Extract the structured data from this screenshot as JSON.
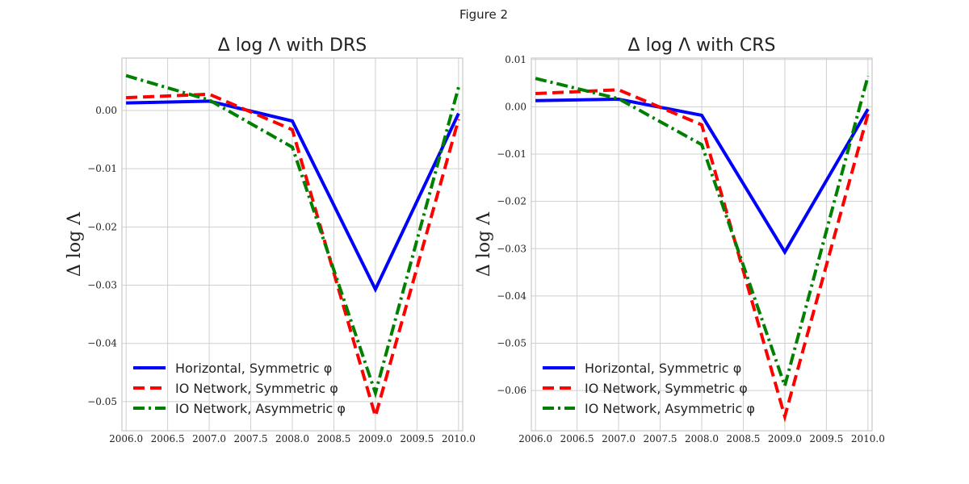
{
  "figure": {
    "title": "Figure 2"
  },
  "chart_data": [
    {
      "type": "line",
      "title": "Δ log Λ with DRS",
      "ylabel": "Δ log Λ",
      "xlabel": "",
      "xlim": [
        2005.95,
        2010.05
      ],
      "ylim": [
        -0.055,
        0.009
      ],
      "xticks": [
        "2006.0",
        "2006.5",
        "2007.0",
        "2007.5",
        "2008.0",
        "2008.5",
        "2009.0",
        "2009.5",
        "2010.0"
      ],
      "xtick_values": [
        2006.0,
        2006.5,
        2007.0,
        2007.5,
        2008.0,
        2008.5,
        2009.0,
        2009.5,
        2010.0
      ],
      "yticks": [
        "0.00",
        "−0.01",
        "−0.02",
        "−0.03",
        "−0.04",
        "−0.05"
      ],
      "ytick_values": [
        0.0,
        -0.01,
        -0.02,
        -0.03,
        -0.04,
        -0.05
      ],
      "grid": true,
      "legend_position": "lower-left",
      "x": [
        2006,
        2007,
        2008,
        2009,
        2010
      ],
      "series": [
        {
          "name": "Horizontal, Symmetric φ",
          "color": "#0000ff",
          "dash": "solid",
          "values": [
            0.0013,
            0.0016,
            -0.0018,
            -0.0307,
            -0.0005
          ]
        },
        {
          "name": "IO Network, Symmetric φ",
          "color": "#ff0000",
          "dash": "dashed",
          "values": [
            0.0022,
            0.0028,
            -0.0033,
            -0.0525,
            -0.0015
          ]
        },
        {
          "name": "IO Network, Asymmetric φ",
          "color": "#008000",
          "dash": "dashdot",
          "values": [
            0.006,
            0.0018,
            -0.0063,
            -0.0485,
            0.004
          ]
        }
      ]
    },
    {
      "type": "line",
      "title": "Δ log Λ with CRS",
      "ylabel": "Δ log Λ",
      "xlabel": "",
      "xlim": [
        2005.95,
        2010.05
      ],
      "ylim": [
        -0.0685,
        0.0103
      ],
      "xticks": [
        "2006.0",
        "2006.5",
        "2007.0",
        "2007.5",
        "2008.0",
        "2008.5",
        "2009.0",
        "2009.5",
        "2010.0"
      ],
      "xtick_values": [
        2006.0,
        2006.5,
        2007.0,
        2007.5,
        2008.0,
        2008.5,
        2009.0,
        2009.5,
        2010.0
      ],
      "yticks": [
        "0.01",
        "0.00",
        "−0.01",
        "−0.02",
        "−0.03",
        "−0.04",
        "−0.05",
        "−0.06"
      ],
      "ytick_values": [
        0.01,
        0.0,
        -0.01,
        -0.02,
        -0.03,
        -0.04,
        -0.05,
        -0.06
      ],
      "grid": true,
      "legend_position": "lower-left",
      "x": [
        2006,
        2007,
        2008,
        2009,
        2010
      ],
      "series": [
        {
          "name": "Horizontal, Symmetric φ",
          "color": "#0000ff",
          "dash": "solid",
          "values": [
            0.0013,
            0.0016,
            -0.0018,
            -0.0307,
            -0.0005
          ]
        },
        {
          "name": "IO Network, Symmetric φ",
          "color": "#ff0000",
          "dash": "dashed",
          "values": [
            0.0028,
            0.0036,
            -0.0038,
            -0.0655,
            -0.0015
          ]
        },
        {
          "name": "IO Network, Asymmetric φ",
          "color": "#008000",
          "dash": "dashdot",
          "values": [
            0.006,
            0.0017,
            -0.008,
            -0.059,
            0.0065
          ]
        }
      ]
    }
  ]
}
